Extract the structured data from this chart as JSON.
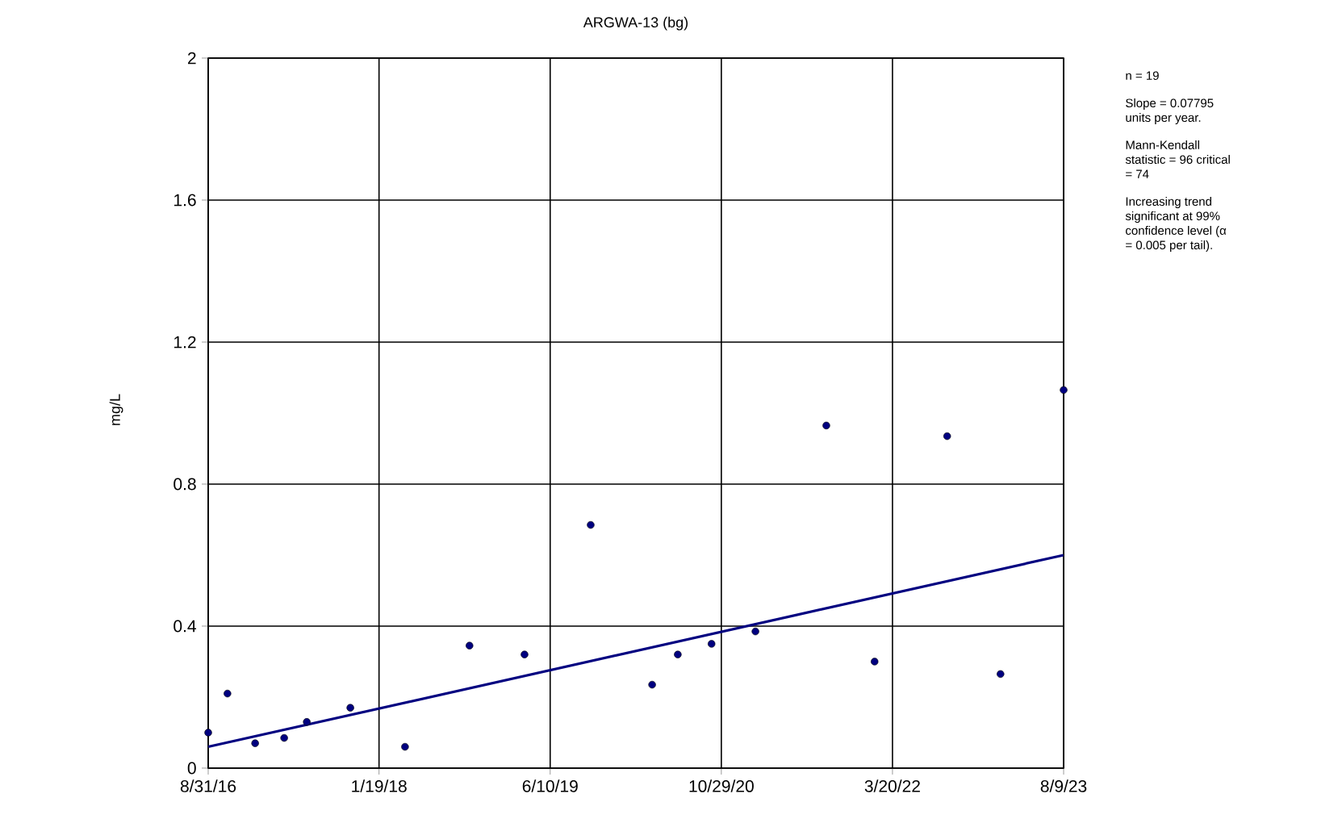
{
  "chart_data": {
    "type": "scatter",
    "title": "ARGWA-13 (bg)",
    "ylabel": "mg/L",
    "annotations": [
      "n = 19",
      "Slope = 0.07795 units per year.",
      "Mann-Kendall statistic = 96 critical = 74",
      "Increasing trend significant at 99% confidence level (α = 0.005 per tail)."
    ],
    "series": [
      {
        "marker": "circle",
        "color": "#000080",
        "x": [
          "2016-08-31",
          "2016-10-27",
          "2017-01-17",
          "2017-04-13",
          "2017-06-19",
          "2017-10-26",
          "2018-04-06",
          "2018-10-14",
          "2019-03-26",
          "2019-10-08",
          "2020-04-07",
          "2020-06-22",
          "2020-09-30",
          "2021-02-07",
          "2021-09-05",
          "2022-01-26",
          "2022-08-29",
          "2023-02-03",
          "2023-08-09"
        ],
        "values": [
          0.1,
          0.21,
          0.07,
          0.085,
          0.13,
          0.17,
          0.06,
          0.345,
          0.32,
          0.685,
          0.235,
          0.32,
          0.35,
          0.385,
          0.965,
          0.3,
          0.935,
          0.265,
          1.065
        ]
      },
      {
        "type": "line",
        "marker": "none",
        "color": "#000080",
        "x": [
          "2016-08-31",
          "2023-08-09"
        ],
        "values": [
          0.06,
          0.6
        ]
      }
    ],
    "grid": true,
    "xlim": [
      "2016-08-31",
      "2023-08-09"
    ],
    "xticks": [
      {
        "value": "2016-08-31",
        "label": "8/31/16"
      },
      {
        "value": "2018-01-19",
        "label": "1/19/18"
      },
      {
        "value": "2019-06-10",
        "label": "6/10/19"
      },
      {
        "value": "2020-10-29",
        "label": "10/29/20"
      },
      {
        "value": "2022-03-20",
        "label": "3/20/22"
      },
      {
        "value": "2023-08-09",
        "label": "8/9/23"
      }
    ],
    "ylim": [
      0,
      2
    ],
    "yticks": [
      0,
      0.4,
      0.8,
      1.2,
      1.6,
      2
    ]
  }
}
